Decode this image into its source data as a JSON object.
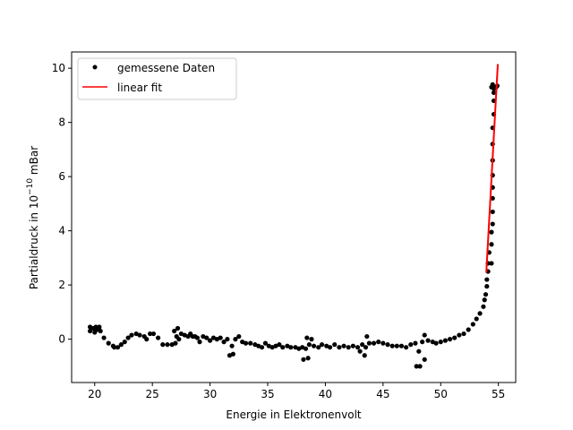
{
  "chart_data": {
    "type": "scatter",
    "xlabel": "Energie in Elektronenvolt",
    "ylabel_prefix": "Partialdruck in 10",
    "ylabel_exponent": "−10",
    "ylabel_suffix": " mBar",
    "xlim": [
      18.0,
      56.5
    ],
    "ylim": [
      -1.6,
      10.6
    ],
    "xticks": [
      20,
      25,
      30,
      35,
      40,
      45,
      50,
      55
    ],
    "yticks": [
      0,
      2,
      4,
      6,
      8,
      10
    ],
    "xtick_labels": [
      "20",
      "25",
      "30",
      "35",
      "40",
      "45",
      "50",
      "55"
    ],
    "ytick_labels": [
      "0",
      "2",
      "4",
      "6",
      "8",
      "10"
    ],
    "grid": false,
    "legend_position": "top-left",
    "series": [
      {
        "name": "gemessene Daten",
        "kind": "scatter",
        "color": "#000000",
        "points": [
          [
            19.6,
            0.45
          ],
          [
            19.6,
            0.3
          ],
          [
            19.9,
            0.4
          ],
          [
            20.0,
            0.25
          ],
          [
            20.1,
            0.45
          ],
          [
            20.2,
            0.35
          ],
          [
            20.4,
            0.45
          ],
          [
            20.5,
            0.3
          ],
          [
            20.8,
            0.05
          ],
          [
            21.2,
            -0.15
          ],
          [
            21.6,
            -0.25
          ],
          [
            21.7,
            -0.3
          ],
          [
            22.0,
            -0.3
          ],
          [
            22.3,
            -0.2
          ],
          [
            22.6,
            -0.1
          ],
          [
            22.9,
            0.05
          ],
          [
            23.2,
            0.15
          ],
          [
            23.6,
            0.2
          ],
          [
            23.9,
            0.15
          ],
          [
            24.3,
            0.1
          ],
          [
            24.5,
            0.0
          ],
          [
            24.8,
            0.2
          ],
          [
            25.1,
            0.2
          ],
          [
            25.5,
            0.05
          ],
          [
            25.9,
            -0.2
          ],
          [
            26.3,
            -0.2
          ],
          [
            26.7,
            -0.2
          ],
          [
            26.9,
            0.3
          ],
          [
            27.0,
            -0.15
          ],
          [
            27.1,
            0.1
          ],
          [
            27.2,
            0.4
          ],
          [
            27.3,
            0.0
          ],
          [
            27.5,
            0.2
          ],
          [
            27.8,
            0.15
          ],
          [
            28.1,
            0.1
          ],
          [
            28.3,
            0.2
          ],
          [
            28.5,
            0.1
          ],
          [
            28.7,
            0.1
          ],
          [
            28.9,
            0.05
          ],
          [
            29.1,
            -0.1
          ],
          [
            29.4,
            0.1
          ],
          [
            29.7,
            0.05
          ],
          [
            30.0,
            -0.05
          ],
          [
            30.3,
            0.05
          ],
          [
            30.6,
            0.0
          ],
          [
            30.9,
            0.05
          ],
          [
            31.2,
            -0.1
          ],
          [
            31.5,
            0.0
          ],
          [
            31.7,
            -0.6
          ],
          [
            31.9,
            -0.25
          ],
          [
            32.0,
            -0.55
          ],
          [
            32.2,
            0.0
          ],
          [
            32.5,
            0.1
          ],
          [
            32.8,
            -0.1
          ],
          [
            33.1,
            -0.15
          ],
          [
            33.5,
            -0.15
          ],
          [
            33.9,
            -0.2
          ],
          [
            34.2,
            -0.25
          ],
          [
            34.5,
            -0.3
          ],
          [
            34.8,
            -0.15
          ],
          [
            35.1,
            -0.25
          ],
          [
            35.4,
            -0.3
          ],
          [
            35.7,
            -0.25
          ],
          [
            36.0,
            -0.2
          ],
          [
            36.3,
            -0.3
          ],
          [
            36.7,
            -0.25
          ],
          [
            37.0,
            -0.3
          ],
          [
            37.4,
            -0.3
          ],
          [
            37.7,
            -0.35
          ],
          [
            38.0,
            -0.3
          ],
          [
            38.1,
            -0.75
          ],
          [
            38.3,
            -0.35
          ],
          [
            38.4,
            0.05
          ],
          [
            38.5,
            -0.7
          ],
          [
            38.6,
            -0.2
          ],
          [
            38.8,
            0.0
          ],
          [
            39.0,
            -0.25
          ],
          [
            39.4,
            -0.3
          ],
          [
            39.7,
            -0.2
          ],
          [
            40.1,
            -0.25
          ],
          [
            40.4,
            -0.3
          ],
          [
            40.8,
            -0.2
          ],
          [
            41.2,
            -0.3
          ],
          [
            41.6,
            -0.25
          ],
          [
            42.0,
            -0.3
          ],
          [
            42.4,
            -0.25
          ],
          [
            42.8,
            -0.3
          ],
          [
            43.0,
            -0.45
          ],
          [
            43.2,
            -0.2
          ],
          [
            43.4,
            -0.6
          ],
          [
            43.5,
            -0.3
          ],
          [
            43.6,
            0.1
          ],
          [
            43.8,
            -0.15
          ],
          [
            44.2,
            -0.15
          ],
          [
            44.6,
            -0.1
          ],
          [
            45.0,
            -0.15
          ],
          [
            45.4,
            -0.2
          ],
          [
            45.8,
            -0.25
          ],
          [
            46.2,
            -0.25
          ],
          [
            46.6,
            -0.25
          ],
          [
            47.0,
            -0.3
          ],
          [
            47.4,
            -0.2
          ],
          [
            47.8,
            -0.15
          ],
          [
            47.9,
            -1.0
          ],
          [
            48.1,
            -0.45
          ],
          [
            48.2,
            -1.0
          ],
          [
            48.4,
            -0.1
          ],
          [
            48.6,
            0.15
          ],
          [
            48.6,
            -0.75
          ],
          [
            48.9,
            -0.05
          ],
          [
            49.3,
            -0.1
          ],
          [
            49.6,
            -0.15
          ],
          [
            50.0,
            -0.1
          ],
          [
            50.4,
            -0.05
          ],
          [
            50.8,
            0.0
          ],
          [
            51.2,
            0.05
          ],
          [
            51.6,
            0.15
          ],
          [
            52.0,
            0.2
          ],
          [
            52.4,
            0.35
          ],
          [
            52.8,
            0.55
          ],
          [
            53.1,
            0.75
          ],
          [
            53.4,
            0.95
          ],
          [
            53.7,
            1.2
          ],
          [
            53.8,
            1.45
          ],
          [
            53.9,
            1.65
          ],
          [
            54.0,
            1.95
          ],
          [
            54.0,
            2.2
          ],
          [
            54.1,
            2.5
          ],
          [
            54.1,
            2.8
          ],
          [
            54.2,
            3.2
          ],
          [
            54.4,
            2.8
          ],
          [
            54.4,
            3.5
          ],
          [
            54.4,
            3.95
          ],
          [
            54.5,
            4.25
          ],
          [
            54.5,
            4.7
          ],
          [
            54.5,
            5.2
          ],
          [
            54.5,
            5.6
          ],
          [
            54.5,
            6.05
          ],
          [
            54.5,
            6.6
          ],
          [
            54.5,
            7.2
          ],
          [
            54.5,
            7.8
          ],
          [
            54.6,
            8.3
          ],
          [
            54.6,
            8.8
          ],
          [
            54.6,
            9.1
          ],
          [
            54.7,
            9.3
          ],
          [
            54.9,
            9.35
          ],
          [
            54.4,
            9.3
          ],
          [
            54.5,
            9.4
          ],
          [
            54.6,
            9.25
          ],
          [
            54.8,
            9.3
          ]
        ]
      },
      {
        "name": "linear fit",
        "kind": "line",
        "color": "#ff0000",
        "points": [
          [
            53.95,
            2.45
          ],
          [
            54.95,
            10.15
          ]
        ]
      }
    ]
  }
}
